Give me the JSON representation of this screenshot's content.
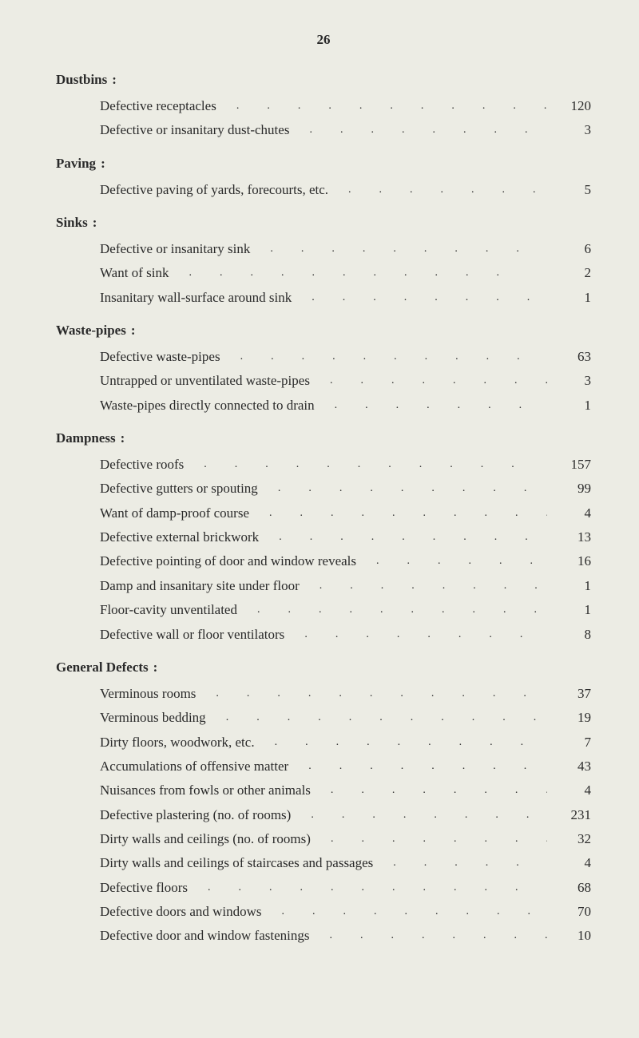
{
  "page_number": "26",
  "sections": [
    {
      "title": "Dustbins",
      "items": [
        {
          "label": "Defective receptacles",
          "value": "120"
        },
        {
          "label": "Defective or insanitary dust-chutes",
          "value": "3"
        }
      ]
    },
    {
      "title": "Paving",
      "items": [
        {
          "label": "Defective paving of yards, forecourts, etc.",
          "value": "5"
        }
      ]
    },
    {
      "title": "Sinks",
      "items": [
        {
          "label": "Defective or insanitary sink",
          "value": "6"
        },
        {
          "label": "Want of sink",
          "value": "2"
        },
        {
          "label": "Insanitary wall-surface around sink",
          "value": "1"
        }
      ]
    },
    {
      "title": "Waste-pipes",
      "items": [
        {
          "label": "Defective waste-pipes",
          "value": "63"
        },
        {
          "label": "Untrapped or unventilated waste-pipes",
          "value": "3"
        },
        {
          "label": "Waste-pipes directly connected to drain",
          "value": "1"
        }
      ]
    },
    {
      "title": "Dampness",
      "items": [
        {
          "label": "Defective roofs",
          "value": "157"
        },
        {
          "label": "Defective gutters or spouting",
          "value": "99"
        },
        {
          "label": "Want of damp-proof course",
          "value": "4"
        },
        {
          "label": "Defective external brickwork",
          "value": "13"
        },
        {
          "label": "Defective pointing of door and window reveals",
          "value": "16"
        },
        {
          "label": "Damp and insanitary site under floor",
          "value": "1"
        },
        {
          "label": "Floor-cavity unventilated",
          "value": "1"
        },
        {
          "label": "Defective wall or floor ventilators",
          "value": "8"
        }
      ]
    },
    {
      "title": "General Defects",
      "items": [
        {
          "label": "Verminous rooms",
          "value": "37"
        },
        {
          "label": "Verminous bedding",
          "value": "19"
        },
        {
          "label": "Dirty floors, woodwork, etc.",
          "value": "7"
        },
        {
          "label": "Accumulations of offensive matter",
          "value": "43"
        },
        {
          "label": "Nuisances from fowls or other animals",
          "value": "4"
        },
        {
          "label": "Defective plastering (no. of rooms)",
          "value": "231"
        },
        {
          "label": "Dirty walls and ceilings (no. of rooms)",
          "value": "32"
        },
        {
          "label": "Dirty walls and ceilings of staircases and passages",
          "value": "4"
        },
        {
          "label": "Defective floors",
          "value": "68"
        },
        {
          "label": "Defective doors and windows",
          "value": "70"
        },
        {
          "label": "Defective door and window fastenings",
          "value": "10"
        }
      ]
    }
  ]
}
